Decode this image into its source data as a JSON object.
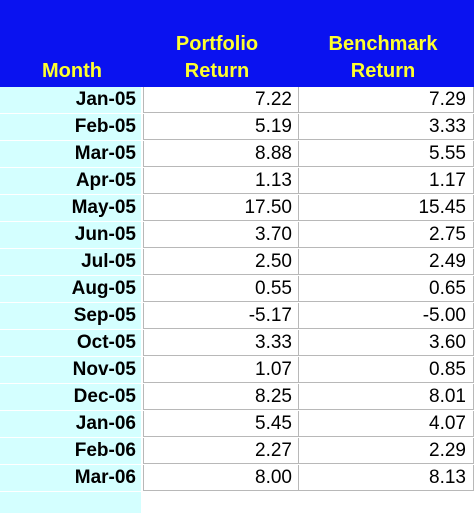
{
  "table": {
    "headers": {
      "month": "Month",
      "portfolio_line1": "Portfolio",
      "portfolio_line2": "Return",
      "benchmark_line1": "Benchmark",
      "benchmark_line2": "Return"
    },
    "rows": [
      {
        "month": "Jan-05",
        "portfolio": "7.22",
        "benchmark": "7.29"
      },
      {
        "month": "Feb-05",
        "portfolio": "5.19",
        "benchmark": "3.33"
      },
      {
        "month": "Mar-05",
        "portfolio": "8.88",
        "benchmark": "5.55"
      },
      {
        "month": "Apr-05",
        "portfolio": "1.13",
        "benchmark": "1.17"
      },
      {
        "month": "May-05",
        "portfolio": "17.50",
        "benchmark": "15.45"
      },
      {
        "month": "Jun-05",
        "portfolio": "3.70",
        "benchmark": "2.75"
      },
      {
        "month": "Jul-05",
        "portfolio": "2.50",
        "benchmark": "2.49"
      },
      {
        "month": "Aug-05",
        "portfolio": "0.55",
        "benchmark": "0.65"
      },
      {
        "month": "Sep-05",
        "portfolio": "-5.17",
        "benchmark": "-5.00"
      },
      {
        "month": "Oct-05",
        "portfolio": "3.33",
        "benchmark": "3.60"
      },
      {
        "month": "Nov-05",
        "portfolio": "1.07",
        "benchmark": "0.85"
      },
      {
        "month": "Dec-05",
        "portfolio": "8.25",
        "benchmark": "8.01"
      },
      {
        "month": "Jan-06",
        "portfolio": "5.45",
        "benchmark": "4.07"
      },
      {
        "month": "Feb-06",
        "portfolio": "2.27",
        "benchmark": "2.29"
      },
      {
        "month": "Mar-06",
        "portfolio": "8.00",
        "benchmark": "8.13"
      }
    ]
  },
  "colors": {
    "header_background": "#0a12f0",
    "header_text": "#ffff2e",
    "month_column_background": "#d4ffff",
    "cell_background": "#ffffff",
    "grid_line": "#b8b8b8"
  }
}
